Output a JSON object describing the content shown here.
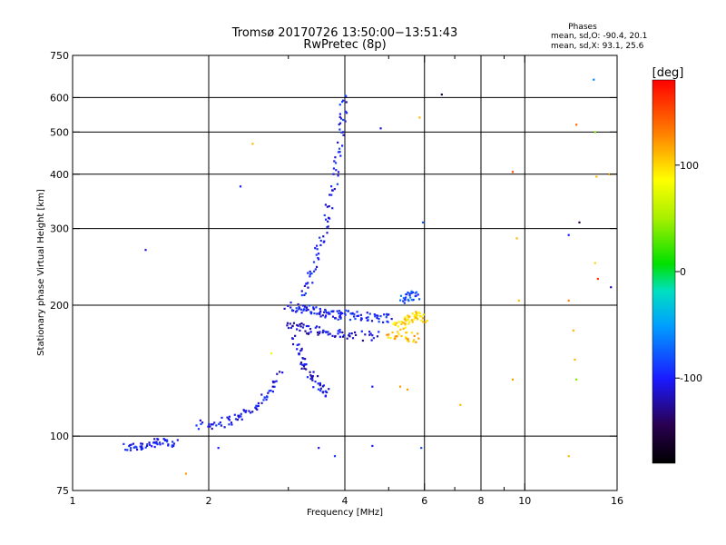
{
  "chart_data": {
    "type": "scatter",
    "title": "Tromsø 20170726 13:50:00−13:51:43",
    "subtitle": "RwPretec (8p)",
    "xlabel": "Frequency [MHz]",
    "ylabel": "Stationary phase Virtual Height [km]",
    "x_scale": "log",
    "y_scale": "log",
    "xlim": [
      1,
      16
    ],
    "ylim": [
      75,
      750
    ],
    "x_ticks": [
      1,
      2,
      4,
      6,
      8,
      10,
      16
    ],
    "x_tick_labels": [
      "1",
      "2",
      "4",
      "6",
      "8",
      "10",
      "16"
    ],
    "x_minor_ticks": [
      3,
      5,
      7,
      9
    ],
    "x_grid": [
      2,
      4,
      6,
      8,
      10
    ],
    "y_ticks": [
      75,
      100,
      200,
      300,
      400,
      500,
      600,
      750
    ],
    "y_tick_labels": [
      "75",
      "100",
      "200",
      "300",
      "400",
      "500",
      "600",
      "750"
    ],
    "y_grid": [
      100,
      200,
      300,
      400,
      500,
      600
    ],
    "grid": true,
    "stats": {
      "heading": "Phases",
      "line_o": "mean, sd,O: -90.4, 20.1",
      "line_x": "mean, sd,X:  93.1, 25.6"
    },
    "colorbar": {
      "label": "[deg]",
      "range": [
        -180,
        180
      ],
      "ticks": [
        100,
        0,
        -100
      ],
      "tick_labels": [
        "100",
        "0",
        "-100"
      ],
      "colormap": "rainbow"
    },
    "traces": [
      {
        "desc": "low F trace",
        "x": [
          1.3,
          1.4,
          1.5,
          1.6,
          1.7
        ],
        "y": [
          94,
          95,
          96,
          97,
          97
        ],
        "phase": -100
      },
      {
        "desc": "F1 rise",
        "x": [
          1.9,
          2.1,
          2.3,
          2.5,
          2.7,
          2.9
        ],
        "y": [
          106,
          107,
          110,
          115,
          125,
          140
        ],
        "phase": -105
      },
      {
        "desc": "main cusp low branch",
        "x": [
          3.0,
          3.2,
          3.4,
          3.6,
          3.8,
          4.0,
          4.3,
          4.7,
          5.1
        ],
        "y": [
          200,
          196,
          194,
          192,
          190,
          190,
          189,
          188,
          187
        ],
        "phase": -100
      },
      {
        "desc": "lower descending",
        "x": [
          3.0,
          3.2,
          3.5,
          3.8,
          4.2,
          4.8
        ],
        "y": [
          180,
          178,
          175,
          172,
          170,
          170
        ],
        "phase": -110
      },
      {
        "desc": "F2 o-trace vertical",
        "x": [
          3.2,
          3.4,
          3.55,
          3.7,
          3.85,
          3.95,
          4.0
        ],
        "y": [
          210,
          240,
          280,
          340,
          420,
          520,
          620
        ],
        "phase": -100
      },
      {
        "desc": "low loop",
        "x": [
          3.1,
          3.2,
          3.35,
          3.5,
          3.7
        ],
        "y": [
          170,
          150,
          140,
          130,
          125
        ],
        "phase": -110
      },
      {
        "desc": "x-mode yellow",
        "x": [
          5.2,
          5.4,
          5.6,
          5.8,
          6.0
        ],
        "y": [
          178,
          182,
          186,
          190,
          185
        ],
        "phase": 100
      },
      {
        "desc": "x-mode low yellow",
        "x": [
          5.0,
          5.4,
          5.8
        ],
        "y": [
          172,
          170,
          168
        ],
        "phase": 110
      },
      {
        "desc": "upper right cluster",
        "x": [
          5.3,
          5.6,
          5.8
        ],
        "y": [
          205,
          210,
          212
        ],
        "phase": -80
      }
    ],
    "points": [
      {
        "x": 1.45,
        "y": 268,
        "phase": -110
      },
      {
        "x": 1.78,
        "y": 82,
        "phase": 120
      },
      {
        "x": 2.1,
        "y": 94,
        "phase": -100
      },
      {
        "x": 2.35,
        "y": 375,
        "phase": -100
      },
      {
        "x": 2.5,
        "y": 470,
        "phase": 110
      },
      {
        "x": 2.75,
        "y": 155,
        "phase": 80
      },
      {
        "x": 3.5,
        "y": 94,
        "phase": -110
      },
      {
        "x": 3.8,
        "y": 90,
        "phase": -90
      },
      {
        "x": 4.6,
        "y": 95,
        "phase": -100
      },
      {
        "x": 4.8,
        "y": 510,
        "phase": -110
      },
      {
        "x": 4.6,
        "y": 130,
        "phase": -100
      },
      {
        "x": 5.3,
        "y": 130,
        "phase": 120
      },
      {
        "x": 5.5,
        "y": 128,
        "phase": 120
      },
      {
        "x": 5.85,
        "y": 540,
        "phase": 110
      },
      {
        "x": 5.9,
        "y": 94,
        "phase": -80
      },
      {
        "x": 5.95,
        "y": 310,
        "phase": -80
      },
      {
        "x": 6.55,
        "y": 610,
        "phase": -150
      },
      {
        "x": 7.2,
        "y": 118,
        "phase": 110
      },
      {
        "x": 9.4,
        "y": 405,
        "phase": 150
      },
      {
        "x": 9.4,
        "y": 135,
        "phase": 120
      },
      {
        "x": 9.6,
        "y": 285,
        "phase": 110
      },
      {
        "x": 9.7,
        "y": 205,
        "phase": 110
      },
      {
        "x": 12.5,
        "y": 290,
        "phase": -100
      },
      {
        "x": 12.5,
        "y": 205,
        "phase": 130
      },
      {
        "x": 12.5,
        "y": 90,
        "phase": 110
      },
      {
        "x": 12.8,
        "y": 175,
        "phase": 110
      },
      {
        "x": 12.9,
        "y": 150,
        "phase": 110
      },
      {
        "x": 13.0,
        "y": 520,
        "phase": 140
      },
      {
        "x": 13.2,
        "y": 310,
        "phase": -150
      },
      {
        "x": 13.0,
        "y": 135,
        "phase": 40
      },
      {
        "x": 14.2,
        "y": 660,
        "phase": -60
      },
      {
        "x": 14.4,
        "y": 395,
        "phase": 110
      },
      {
        "x": 14.3,
        "y": 250,
        "phase": 100
      },
      {
        "x": 14.5,
        "y": 230,
        "phase": 160
      },
      {
        "x": 15.5,
        "y": 220,
        "phase": -120
      },
      {
        "x": 15.4,
        "y": 400,
        "phase": 120
      },
      {
        "x": 14.3,
        "y": 500,
        "phase": 40
      }
    ]
  }
}
